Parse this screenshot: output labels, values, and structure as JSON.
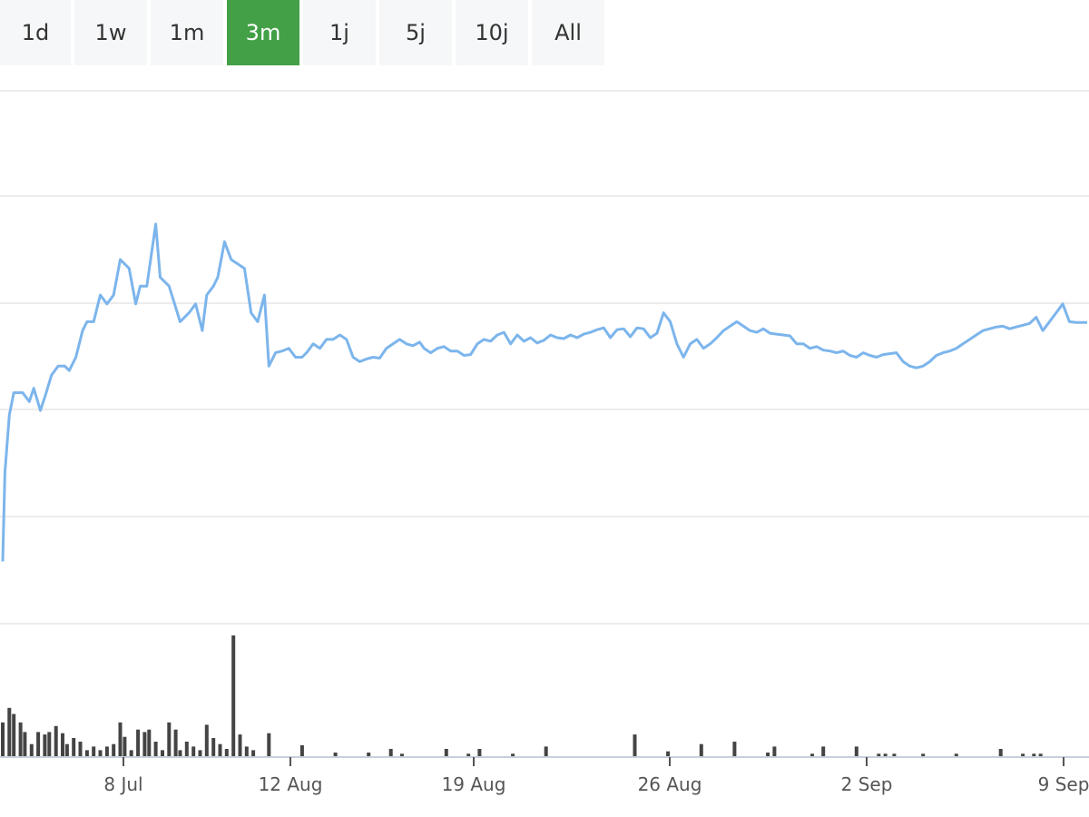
{
  "range_selector": {
    "buttons": [
      {
        "label": "1d"
      },
      {
        "label": "1w"
      },
      {
        "label": "1m"
      },
      {
        "label": "3m"
      },
      {
        "label": "1j"
      },
      {
        "label": "5j"
      },
      {
        "label": "10j"
      },
      {
        "label": "All"
      }
    ],
    "active_index": 3
  },
  "colors": {
    "line": "#7cb5ec",
    "volume": "#444444",
    "active_button": "#43a047",
    "button_bg": "#f6f7f8",
    "grid": "#e6e6e6"
  },
  "chart_data": {
    "type": "line",
    "title": "",
    "xlabel": "",
    "ylabel": "",
    "x_ticks": [
      "8 Jul",
      "12 Aug",
      "19 Aug",
      "26 Aug",
      "2 Sep",
      "9 Sep"
    ],
    "y_tick_labels_shown": false,
    "grid": true,
    "price": [
      [
        0,
        53
      ],
      [
        0.1,
        43
      ],
      [
        0.3,
        36.5
      ],
      [
        0.5,
        34
      ],
      [
        0.9,
        34
      ],
      [
        1.2,
        35
      ],
      [
        1.4,
        33.5
      ],
      [
        1.7,
        36
      ],
      [
        1.9,
        34.5
      ],
      [
        2.2,
        32
      ],
      [
        2.5,
        31
      ],
      [
        2.8,
        31
      ],
      [
        3.0,
        31.5
      ],
      [
        3.3,
        30
      ],
      [
        3.6,
        27
      ],
      [
        3.8,
        26
      ],
      [
        4.1,
        26
      ],
      [
        4.4,
        23
      ],
      [
        4.7,
        24
      ],
      [
        5.0,
        23
      ],
      [
        5.3,
        19
      ],
      [
        5.7,
        20
      ],
      [
        6.0,
        24
      ],
      [
        6.2,
        22
      ],
      [
        6.5,
        22
      ],
      [
        6.9,
        15
      ],
      [
        7.1,
        21
      ],
      [
        7.5,
        22
      ],
      [
        8.0,
        26
      ],
      [
        8.4,
        25
      ],
      [
        8.7,
        24
      ],
      [
        9.0,
        27
      ],
      [
        9.2,
        23
      ],
      [
        9.5,
        22
      ],
      [
        9.7,
        21
      ],
      [
        10.0,
        17
      ],
      [
        10.3,
        19
      ],
      [
        10.6,
        19.5
      ],
      [
        10.9,
        20
      ],
      [
        11.2,
        25
      ],
      [
        11.5,
        26
      ],
      [
        11.8,
        23
      ],
      [
        12.0,
        31
      ],
      [
        12.3,
        29.5
      ],
      [
        12.6,
        29.3
      ],
      [
        12.9,
        29
      ],
      [
        13.2,
        30
      ],
      [
        13.5,
        30
      ],
      [
        13.7,
        29.5
      ],
      [
        14.0,
        28.5
      ],
      [
        14.3,
        29
      ],
      [
        14.6,
        28
      ],
      [
        14.9,
        28
      ],
      [
        15.2,
        27.5
      ],
      [
        15.5,
        28
      ],
      [
        15.8,
        30
      ],
      [
        16.1,
        30.5
      ],
      [
        16.4,
        30.2
      ],
      [
        16.7,
        30
      ],
      [
        17.0,
        30.1
      ],
      [
        17.3,
        29
      ],
      [
        17.6,
        28.5
      ],
      [
        17.9,
        28
      ],
      [
        18.2,
        28.5
      ],
      [
        18.5,
        28.7
      ],
      [
        18.8,
        28.3
      ],
      [
        19.0,
        29
      ],
      [
        19.3,
        29.5
      ],
      [
        19.6,
        29
      ],
      [
        19.9,
        28.8
      ],
      [
        20.2,
        29.3
      ],
      [
        20.5,
        29.3
      ],
      [
        20.8,
        29.8
      ],
      [
        21.1,
        29.7
      ],
      [
        21.4,
        28.5
      ],
      [
        21.7,
        28
      ],
      [
        22.0,
        28.2
      ],
      [
        22.3,
        27.5
      ],
      [
        22.6,
        27.2
      ],
      [
        22.9,
        28.5
      ],
      [
        23.2,
        27.5
      ],
      [
        23.5,
        28.2
      ],
      [
        23.8,
        27.8
      ],
      [
        24.1,
        28.4
      ],
      [
        24.4,
        28.1
      ],
      [
        24.7,
        27.5
      ],
      [
        25.0,
        27.8
      ],
      [
        25.3,
        27.9
      ],
      [
        25.6,
        27.5
      ],
      [
        25.9,
        27.8
      ],
      [
        26.2,
        27.4
      ],
      [
        26.5,
        27.2
      ],
      [
        26.8,
        26.9
      ],
      [
        27.1,
        26.7
      ],
      [
        27.4,
        27.8
      ],
      [
        27.7,
        26.9
      ],
      [
        28.0,
        26.8
      ],
      [
        28.3,
        27.7
      ],
      [
        28.6,
        26.7
      ],
      [
        28.9,
        26.8
      ],
      [
        29.2,
        27.8
      ],
      [
        29.5,
        27.3
      ],
      [
        29.8,
        25
      ],
      [
        30.1,
        26
      ],
      [
        30.4,
        28.5
      ],
      [
        30.7,
        30
      ],
      [
        31.0,
        28.5
      ],
      [
        31.3,
        28
      ],
      [
        31.6,
        29
      ],
      [
        31.9,
        28.5
      ],
      [
        32.2,
        27.8
      ],
      [
        32.5,
        27
      ],
      [
        32.8,
        26.5
      ],
      [
        33.1,
        26
      ],
      [
        33.4,
        26.5
      ],
      [
        33.7,
        27
      ],
      [
        34.0,
        27.2
      ],
      [
        34.3,
        26.8
      ],
      [
        34.6,
        27.3
      ],
      [
        34.9,
        27.4
      ],
      [
        35.2,
        27.5
      ],
      [
        35.5,
        27.6
      ],
      [
        35.8,
        28.5
      ],
      [
        36.1,
        28.5
      ],
      [
        36.4,
        29
      ],
      [
        36.7,
        28.8
      ],
      [
        37.0,
        29.2
      ],
      [
        37.3,
        29.3
      ],
      [
        37.6,
        29.5
      ],
      [
        37.9,
        29.3
      ],
      [
        38.2,
        29.8
      ],
      [
        38.5,
        30
      ],
      [
        38.8,
        29.5
      ],
      [
        39.1,
        29.8
      ],
      [
        39.4,
        30
      ],
      [
        39.7,
        29.7
      ],
      [
        40.0,
        29.6
      ],
      [
        40.3,
        29.5
      ],
      [
        40.6,
        30.5
      ],
      [
        40.9,
        31
      ],
      [
        41.2,
        31.2
      ],
      [
        41.5,
        31
      ],
      [
        41.8,
        30.5
      ],
      [
        42.1,
        29.8
      ],
      [
        42.4,
        29.5
      ],
      [
        42.7,
        29.3
      ],
      [
        43.0,
        29
      ],
      [
        43.3,
        28.5
      ],
      [
        43.6,
        28
      ],
      [
        43.9,
        27.5
      ],
      [
        44.2,
        27
      ],
      [
        44.5,
        26.8
      ],
      [
        44.8,
        26.6
      ],
      [
        45.1,
        26.5
      ],
      [
        45.4,
        26.8
      ],
      [
        45.7,
        26.6
      ],
      [
        46.0,
        26.4
      ],
      [
        46.3,
        26.2
      ],
      [
        46.6,
        25.5
      ],
      [
        46.9,
        27
      ],
      [
        47.2,
        26
      ],
      [
        47.5,
        25
      ],
      [
        47.8,
        24
      ],
      [
        48.1,
        26
      ],
      [
        48.4,
        26.1
      ],
      [
        48.7,
        26.1
      ],
      [
        48.9,
        26.1
      ]
    ],
    "volume": [
      [
        0,
        0.28
      ],
      [
        0.3,
        0.4
      ],
      [
        0.5,
        0.35
      ],
      [
        0.8,
        0.28
      ],
      [
        1.0,
        0.2
      ],
      [
        1.3,
        0.1
      ],
      [
        1.6,
        0.2
      ],
      [
        1.9,
        0.18
      ],
      [
        2.1,
        0.2
      ],
      [
        2.4,
        0.25
      ],
      [
        2.7,
        0.19
      ],
      [
        2.9,
        0.1
      ],
      [
        3.2,
        0.15
      ],
      [
        3.5,
        0.12
      ],
      [
        3.8,
        0.05
      ],
      [
        4.1,
        0.08
      ],
      [
        4.4,
        0.05
      ],
      [
        4.7,
        0.08
      ],
      [
        5.0,
        0.1
      ],
      [
        5.3,
        0.28
      ],
      [
        5.5,
        0.16
      ],
      [
        5.8,
        0.05
      ],
      [
        6.1,
        0.22
      ],
      [
        6.4,
        0.2
      ],
      [
        6.6,
        0.22
      ],
      [
        6.9,
        0.12
      ],
      [
        7.2,
        0.05
      ],
      [
        7.5,
        0.28
      ],
      [
        7.8,
        0.22
      ],
      [
        8.0,
        0.05
      ],
      [
        8.3,
        0.12
      ],
      [
        8.6,
        0.08
      ],
      [
        8.9,
        0.05
      ],
      [
        9.2,
        0.26
      ],
      [
        9.5,
        0.15
      ],
      [
        9.8,
        0.1
      ],
      [
        10.1,
        0.06
      ],
      [
        10.4,
        1.0
      ],
      [
        10.7,
        0.18
      ],
      [
        11.0,
        0.08
      ],
      [
        11.3,
        0.05
      ],
      [
        12.0,
        0.19
      ],
      [
        13.5,
        0.09
      ],
      [
        15.0,
        0.03
      ],
      [
        16.5,
        0.03
      ],
      [
        17.5,
        0.06
      ],
      [
        18.0,
        0.02
      ],
      [
        20.0,
        0.06
      ],
      [
        21.0,
        0.02
      ],
      [
        21.5,
        0.06
      ],
      [
        23.0,
        0.02
      ],
      [
        24.5,
        0.08
      ],
      [
        28.5,
        0.18
      ],
      [
        30.0,
        0.04
      ],
      [
        31.5,
        0.1
      ],
      [
        33.0,
        0.12
      ],
      [
        34.5,
        0.03
      ],
      [
        34.8,
        0.08
      ],
      [
        36.5,
        0.02
      ],
      [
        37.0,
        0.08
      ],
      [
        38.5,
        0.08
      ],
      [
        39.5,
        0.02
      ],
      [
        39.8,
        0.02
      ],
      [
        40.2,
        0.02
      ],
      [
        41.5,
        0.02
      ],
      [
        43.0,
        0.02
      ],
      [
        45.0,
        0.06
      ],
      [
        46.0,
        0.02
      ],
      [
        46.5,
        0.02
      ],
      [
        46.8,
        0.02
      ]
    ]
  }
}
